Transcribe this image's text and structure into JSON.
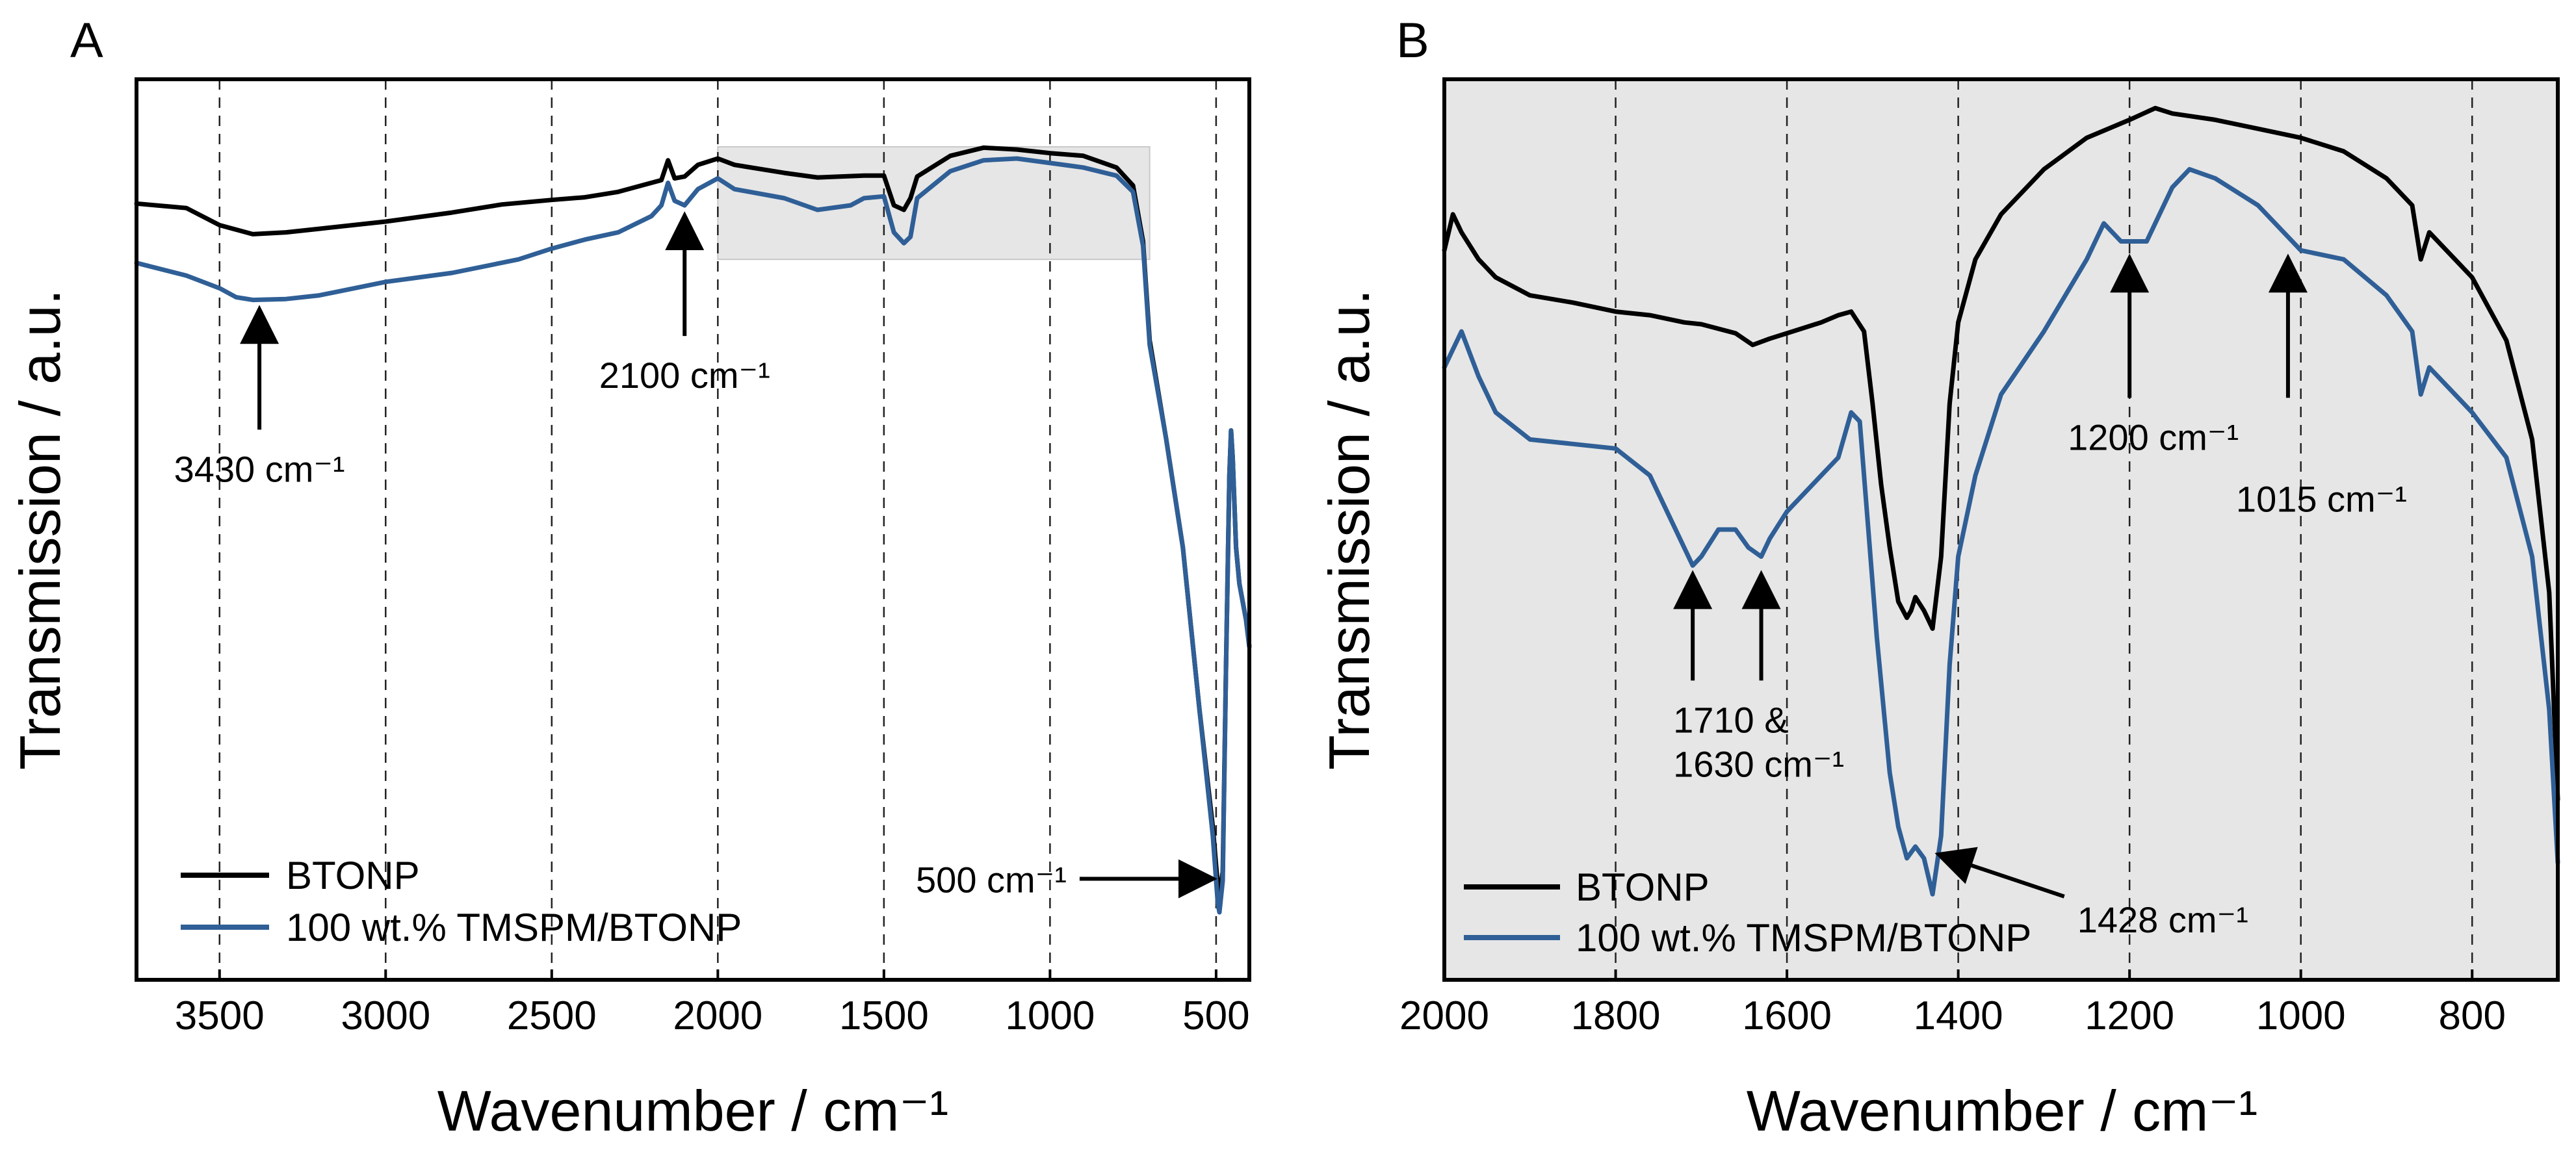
{
  "chart_data": [
    {
      "panel": "A",
      "type": "line",
      "xlabel": "Wavenumber / cm⁻¹",
      "ylabel": "Transmission / a.u.",
      "xlim": [
        3750,
        400
      ],
      "x_reversed": true,
      "xticks": [
        3500,
        3000,
        2500,
        2000,
        1500,
        1000,
        500
      ],
      "xtick_labels": [
        "3500",
        "3000",
        "2500",
        "2000",
        "1500",
        "1000",
        "500"
      ],
      "y_ticks_shown": false,
      "vertical_dashed_lines": [
        3500,
        3000,
        2500,
        2000,
        1500,
        1000,
        500
      ],
      "highlight_box": {
        "x_range": [
          2000,
          700
        ],
        "y_range": [
          0.8,
          0.925
        ],
        "color": "#e6e6e6"
      },
      "legend": {
        "placement": "bottom-left",
        "entries": [
          "BTONP",
          "100 wt.% TMSPM/BTONP"
        ]
      },
      "series": [
        {
          "name": "BTONP",
          "color": "#000000",
          "points": [
            [
              3750,
              0.862
            ],
            [
              3600,
              0.857
            ],
            [
              3500,
              0.838
            ],
            [
              3400,
              0.828
            ],
            [
              3300,
              0.83
            ],
            [
              3200,
              0.834
            ],
            [
              3000,
              0.842
            ],
            [
              2800,
              0.852
            ],
            [
              2650,
              0.861
            ],
            [
              2500,
              0.866
            ],
            [
              2400,
              0.869
            ],
            [
              2300,
              0.875
            ],
            [
              2200,
              0.885
            ],
            [
              2170,
              0.888
            ],
            [
              2150,
              0.91
            ],
            [
              2130,
              0.89
            ],
            [
              2100,
              0.892
            ],
            [
              2060,
              0.905
            ],
            [
              2000,
              0.912
            ],
            [
              1950,
              0.905
            ],
            [
              1800,
              0.896
            ],
            [
              1700,
              0.891
            ],
            [
              1560,
              0.893
            ],
            [
              1500,
              0.893
            ],
            [
              1470,
              0.86
            ],
            [
              1440,
              0.855
            ],
            [
              1420,
              0.868
            ],
            [
              1400,
              0.892
            ],
            [
              1300,
              0.915
            ],
            [
              1200,
              0.924
            ],
            [
              1100,
              0.922
            ],
            [
              1000,
              0.918
            ],
            [
              900,
              0.915
            ],
            [
              800,
              0.902
            ],
            [
              750,
              0.882
            ],
            [
              720,
              0.82
            ],
            [
              700,
              0.71
            ],
            [
              650,
              0.6
            ],
            [
              600,
              0.48
            ],
            [
              550,
              0.3
            ],
            [
              510,
              0.17
            ],
            [
              495,
              0.105
            ],
            [
              490,
              0.095
            ],
            [
              480,
              0.12
            ],
            [
              470,
              0.35
            ],
            [
              460,
              0.56
            ],
            [
              455,
              0.61
            ],
            [
              450,
              0.58
            ],
            [
              440,
              0.48
            ],
            [
              430,
              0.44
            ],
            [
              410,
              0.4
            ],
            [
              400,
              0.37
            ]
          ]
        },
        {
          "name": "100 wt.% TMSPM/BTONP",
          "color": "#2f5f96",
          "points": [
            [
              3750,
              0.796
            ],
            [
              3600,
              0.782
            ],
            [
              3500,
              0.768
            ],
            [
              3450,
              0.758
            ],
            [
              3400,
              0.755
            ],
            [
              3300,
              0.756
            ],
            [
              3200,
              0.76
            ],
            [
              3000,
              0.775
            ],
            [
              2800,
              0.785
            ],
            [
              2600,
              0.8
            ],
            [
              2500,
              0.812
            ],
            [
              2400,
              0.822
            ],
            [
              2300,
              0.83
            ],
            [
              2200,
              0.848
            ],
            [
              2170,
              0.86
            ],
            [
              2150,
              0.885
            ],
            [
              2130,
              0.865
            ],
            [
              2100,
              0.86
            ],
            [
              2060,
              0.878
            ],
            [
              2000,
              0.89
            ],
            [
              1950,
              0.878
            ],
            [
              1800,
              0.868
            ],
            [
              1700,
              0.855
            ],
            [
              1600,
              0.86
            ],
            [
              1560,
              0.868
            ],
            [
              1500,
              0.87
            ],
            [
              1470,
              0.83
            ],
            [
              1440,
              0.818
            ],
            [
              1420,
              0.825
            ],
            [
              1400,
              0.868
            ],
            [
              1300,
              0.898
            ],
            [
              1200,
              0.91
            ],
            [
              1100,
              0.912
            ],
            [
              1000,
              0.907
            ],
            [
              900,
              0.902
            ],
            [
              800,
              0.893
            ],
            [
              750,
              0.875
            ],
            [
              720,
              0.815
            ],
            [
              700,
              0.705
            ],
            [
              650,
              0.6
            ],
            [
              600,
              0.48
            ],
            [
              550,
              0.3
            ],
            [
              510,
              0.16
            ],
            [
              495,
              0.085
            ],
            [
              490,
              0.075
            ],
            [
              480,
              0.11
            ],
            [
              470,
              0.35
            ],
            [
              460,
              0.56
            ],
            [
              455,
              0.61
            ],
            [
              450,
              0.58
            ],
            [
              440,
              0.48
            ],
            [
              430,
              0.44
            ],
            [
              410,
              0.4
            ],
            [
              400,
              0.37
            ]
          ]
        }
      ],
      "annotations": [
        {
          "text": "3430 cm⁻¹",
          "x": 3380,
          "y": 0.748
        },
        {
          "text": "2100 cm⁻¹",
          "x": 2100,
          "y": 0.852
        },
        {
          "text": "500 cm⁻¹",
          "x": 500,
          "y": 0.11
        }
      ]
    },
    {
      "panel": "B",
      "type": "line",
      "xlabel": "Wavenumber / cm⁻¹",
      "ylabel": "Transmission / a.u.",
      "xlim": [
        2000,
        700
      ],
      "x_reversed": true,
      "xticks": [
        2000,
        1800,
        1600,
        1400,
        1200,
        1000,
        800
      ],
      "xtick_labels": [
        "2000",
        "1800",
        "1600",
        "1400",
        "1200",
        "1000",
        "800"
      ],
      "y_ticks_shown": false,
      "vertical_dashed_lines": [
        1800,
        1600,
        1400,
        1200,
        1000,
        800
      ],
      "background": "#e6e6e6",
      "legend": {
        "placement": "bottom-left",
        "entries": [
          "BTONP",
          "100 wt.% TMSPM/BTONP"
        ]
      },
      "series": [
        {
          "name": "BTONP",
          "color": "#000000",
          "points": [
            [
              2000,
              0.81
            ],
            [
              1990,
              0.85
            ],
            [
              1980,
              0.83
            ],
            [
              1960,
              0.8
            ],
            [
              1940,
              0.78
            ],
            [
              1900,
              0.76
            ],
            [
              1850,
              0.752
            ],
            [
              1800,
              0.742
            ],
            [
              1760,
              0.738
            ],
            [
              1720,
              0.73
            ],
            [
              1700,
              0.728
            ],
            [
              1660,
              0.718
            ],
            [
              1640,
              0.705
            ],
            [
              1620,
              0.712
            ],
            [
              1600,
              0.718
            ],
            [
              1560,
              0.73
            ],
            [
              1540,
              0.738
            ],
            [
              1525,
              0.742
            ],
            [
              1510,
              0.72
            ],
            [
              1500,
              0.64
            ],
            [
              1490,
              0.55
            ],
            [
              1480,
              0.48
            ],
            [
              1470,
              0.42
            ],
            [
              1460,
              0.402
            ],
            [
              1455,
              0.41
            ],
            [
              1450,
              0.425
            ],
            [
              1440,
              0.41
            ],
            [
              1430,
              0.39
            ],
            [
              1420,
              0.47
            ],
            [
              1410,
              0.64
            ],
            [
              1400,
              0.73
            ],
            [
              1380,
              0.8
            ],
            [
              1350,
              0.85
            ],
            [
              1300,
              0.9
            ],
            [
              1250,
              0.935
            ],
            [
              1200,
              0.955
            ],
            [
              1170,
              0.968
            ],
            [
              1150,
              0.962
            ],
            [
              1100,
              0.955
            ],
            [
              1050,
              0.945
            ],
            [
              1000,
              0.935
            ],
            [
              950,
              0.92
            ],
            [
              900,
              0.89
            ],
            [
              870,
              0.86
            ],
            [
              860,
              0.8
            ],
            [
              850,
              0.83
            ],
            [
              820,
              0.8
            ],
            [
              800,
              0.78
            ],
            [
              760,
              0.71
            ],
            [
              730,
              0.6
            ],
            [
              710,
              0.43
            ],
            [
              700,
              0.2
            ]
          ]
        },
        {
          "name": "100 wt.% TMSPM/BTONP",
          "color": "#2f5f96",
          "points": [
            [
              2000,
              0.68
            ],
            [
              1990,
              0.7
            ],
            [
              1980,
              0.72
            ],
            [
              1960,
              0.67
            ],
            [
              1940,
              0.63
            ],
            [
              1900,
              0.6
            ],
            [
              1850,
              0.595
            ],
            [
              1800,
              0.59
            ],
            [
              1760,
              0.56
            ],
            [
              1730,
              0.5
            ],
            [
              1710,
              0.46
            ],
            [
              1700,
              0.47
            ],
            [
              1680,
              0.5
            ],
            [
              1660,
              0.5
            ],
            [
              1645,
              0.48
            ],
            [
              1630,
              0.47
            ],
            [
              1620,
              0.49
            ],
            [
              1600,
              0.52
            ],
            [
              1570,
              0.55
            ],
            [
              1540,
              0.58
            ],
            [
              1525,
              0.63
            ],
            [
              1515,
              0.62
            ],
            [
              1505,
              0.5
            ],
            [
              1495,
              0.38
            ],
            [
              1480,
              0.23
            ],
            [
              1470,
              0.17
            ],
            [
              1460,
              0.135
            ],
            [
              1450,
              0.148
            ],
            [
              1440,
              0.135
            ],
            [
              1430,
              0.095
            ],
            [
              1420,
              0.16
            ],
            [
              1410,
              0.35
            ],
            [
              1400,
              0.47
            ],
            [
              1380,
              0.56
            ],
            [
              1350,
              0.65
            ],
            [
              1300,
              0.72
            ],
            [
              1250,
              0.8
            ],
            [
              1230,
              0.84
            ],
            [
              1210,
              0.82
            ],
            [
              1200,
              0.82
            ],
            [
              1180,
              0.82
            ],
            [
              1150,
              0.88
            ],
            [
              1130,
              0.9
            ],
            [
              1100,
              0.89
            ],
            [
              1050,
              0.86
            ],
            [
              1000,
              0.81
            ],
            [
              950,
              0.8
            ],
            [
              900,
              0.76
            ],
            [
              870,
              0.72
            ],
            [
              860,
              0.65
            ],
            [
              850,
              0.68
            ],
            [
              820,
              0.65
            ],
            [
              800,
              0.63
            ],
            [
              760,
              0.58
            ],
            [
              730,
              0.47
            ],
            [
              710,
              0.3
            ],
            [
              700,
              0.13
            ]
          ]
        }
      ],
      "annotations": [
        {
          "text": "1710 &",
          "text2": "1630 cm⁻¹",
          "x": 1710,
          "x2": 1630,
          "y": 0.455
        },
        {
          "text": "1428 cm⁻¹",
          "x": 1428,
          "y": 0.125
        },
        {
          "text": "1200 cm⁻¹",
          "x": 1200,
          "y": 0.805
        },
        {
          "text": "1015 cm⁻¹",
          "x": 1015,
          "y": 0.805
        }
      ]
    }
  ]
}
